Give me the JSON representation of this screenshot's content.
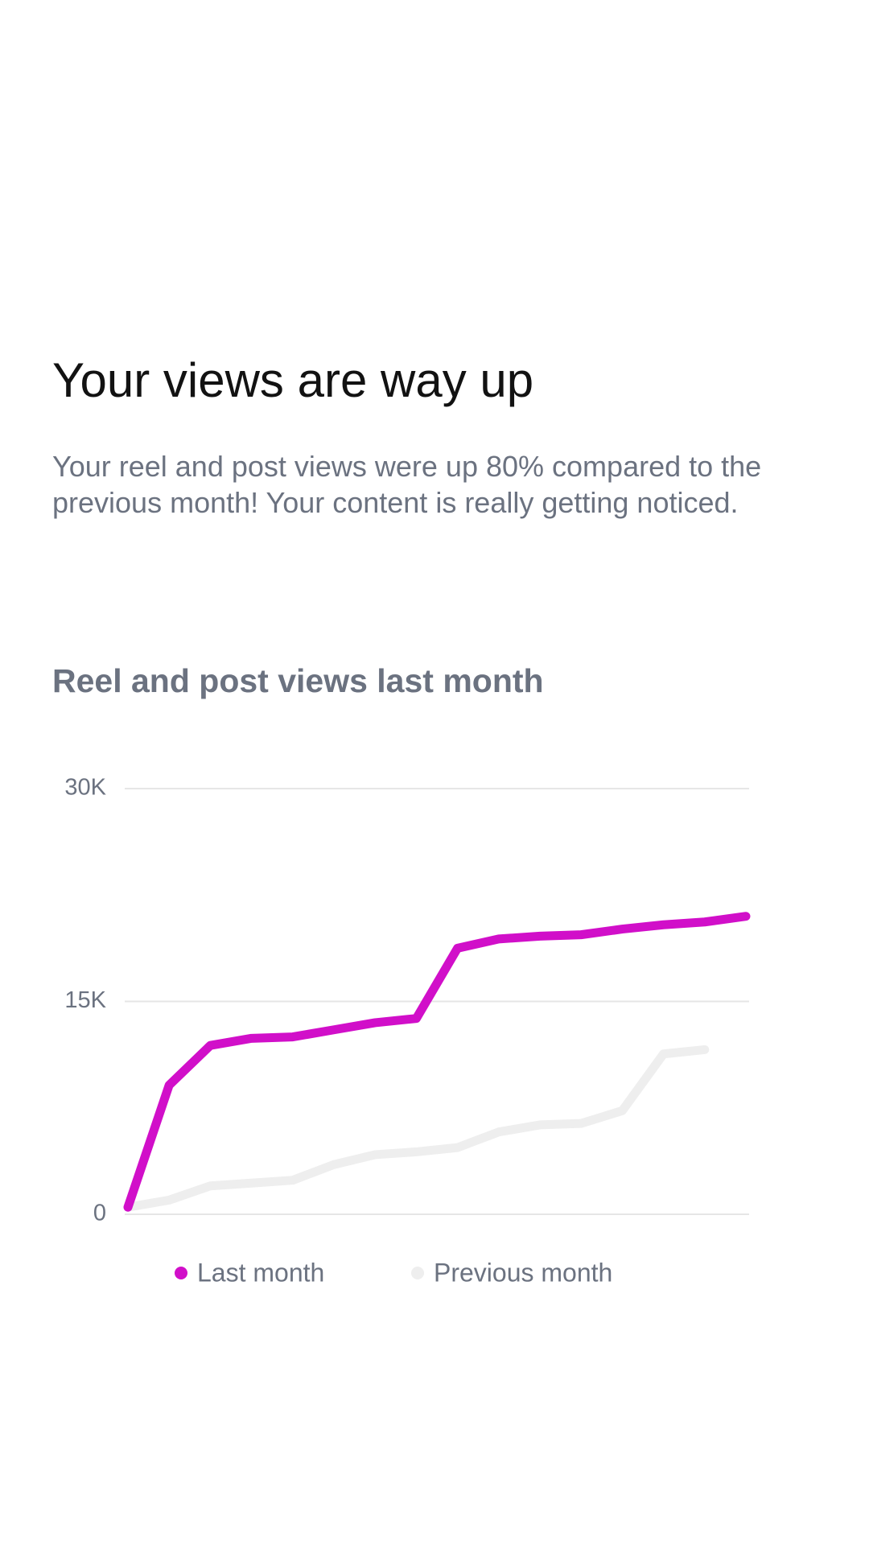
{
  "header": {
    "title": "Your views are way up",
    "body": "Your reel and post views were up 80% compared to the previous month! Your content is really getting noticed."
  },
  "chart_data": {
    "type": "line",
    "title": "Reel and post views last month",
    "categories": [
      null,
      null,
      null,
      null,
      null,
      null,
      null,
      null,
      null,
      null,
      null,
      null,
      null,
      null,
      null,
      null
    ],
    "series": [
      {
        "name": "Last month",
        "color": "#d10fc9",
        "values": [
          500,
          9100,
          11900,
          12400,
          12500,
          13000,
          13500,
          13800,
          18750,
          19400,
          19600,
          19700,
          20100,
          20400,
          20600,
          21000
        ]
      },
      {
        "name": "Previous month",
        "color": "#eeeeee",
        "values": [
          500,
          1000,
          2000,
          2200,
          2400,
          3500,
          4200,
          4400,
          4700,
          5800,
          6300,
          6400,
          7300,
          11300,
          11600,
          null
        ]
      }
    ],
    "ylim": [
      0,
      30000
    ],
    "yticks": [
      0,
      {
        "value": 15000,
        "label": "15K"
      },
      {
        "value": 30000,
        "label": "30K"
      }
    ],
    "grid": true,
    "legend": "bottom"
  }
}
